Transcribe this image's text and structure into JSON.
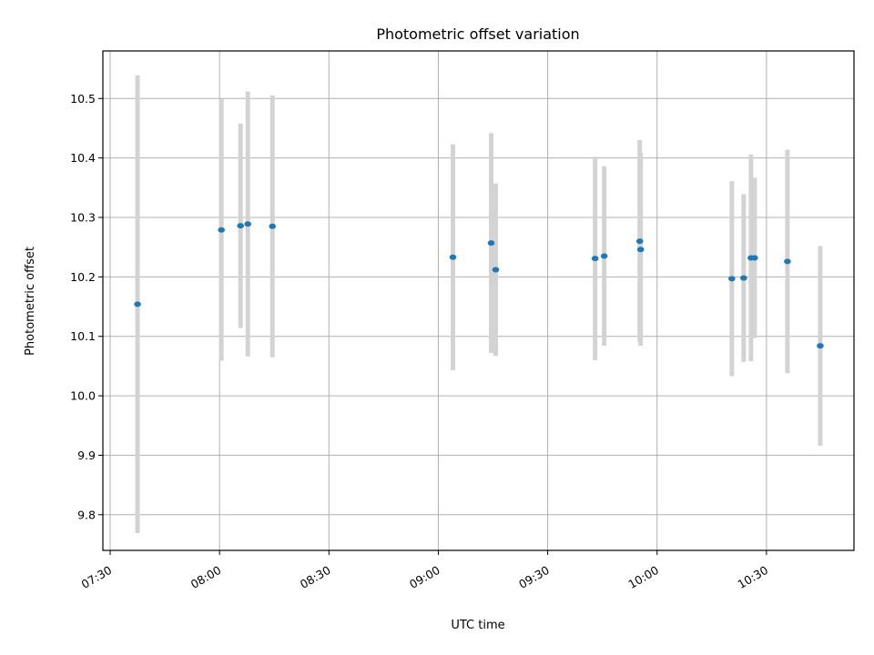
{
  "chart_data": {
    "type": "scatter",
    "title": "Photometric offset variation",
    "xlabel": "UTC time",
    "ylabel": "Photometric offset",
    "x_ticks": [
      "07:30",
      "08:00",
      "08:30",
      "09:00",
      "09:30",
      "10:00",
      "10:30"
    ],
    "y_ticks": [
      "9.8",
      "9.9",
      "10.0",
      "10.1",
      "10.2",
      "10.3",
      "10.4",
      "10.5"
    ],
    "xlim": [
      "07:28",
      "10:54"
    ],
    "ylim": [
      9.74,
      10.58
    ],
    "grid": true,
    "marker_color": "#1f77b4",
    "errorbar_color": "#d3d3d3",
    "points": [
      {
        "x": "07:37:30",
        "y": 10.154,
        "err": 0.385
      },
      {
        "x": "08:00:30",
        "y": 10.279,
        "err": 0.22
      },
      {
        "x": "08:05:45",
        "y": 10.286,
        "err": 0.172
      },
      {
        "x": "08:07:45",
        "y": 10.289,
        "err": 0.223
      },
      {
        "x": "08:14:30",
        "y": 10.285,
        "err": 0.22
      },
      {
        "x": "09:04:00",
        "y": 10.233,
        "err": 0.19
      },
      {
        "x": "09:14:30",
        "y": 10.257,
        "err": 0.185
      },
      {
        "x": "09:15:45",
        "y": 10.212,
        "err": 0.145
      },
      {
        "x": "09:43:00",
        "y": 10.231,
        "err": 0.171
      },
      {
        "x": "09:45:30",
        "y": 10.235,
        "err": 0.151
      },
      {
        "x": "09:55:15",
        "y": 10.26,
        "err": 0.17
      },
      {
        "x": "09:55:30",
        "y": 10.246,
        "err": 0.162
      },
      {
        "x": "10:20:30",
        "y": 10.197,
        "err": 0.164
      },
      {
        "x": "10:23:45",
        "y": 10.198,
        "err": 0.141
      },
      {
        "x": "10:25:45",
        "y": 10.232,
        "err": 0.174
      },
      {
        "x": "10:26:45",
        "y": 10.232,
        "err": 0.135
      },
      {
        "x": "10:35:45",
        "y": 10.226,
        "err": 0.188
      },
      {
        "x": "10:44:45",
        "y": 10.084,
        "err": 0.168
      }
    ]
  }
}
